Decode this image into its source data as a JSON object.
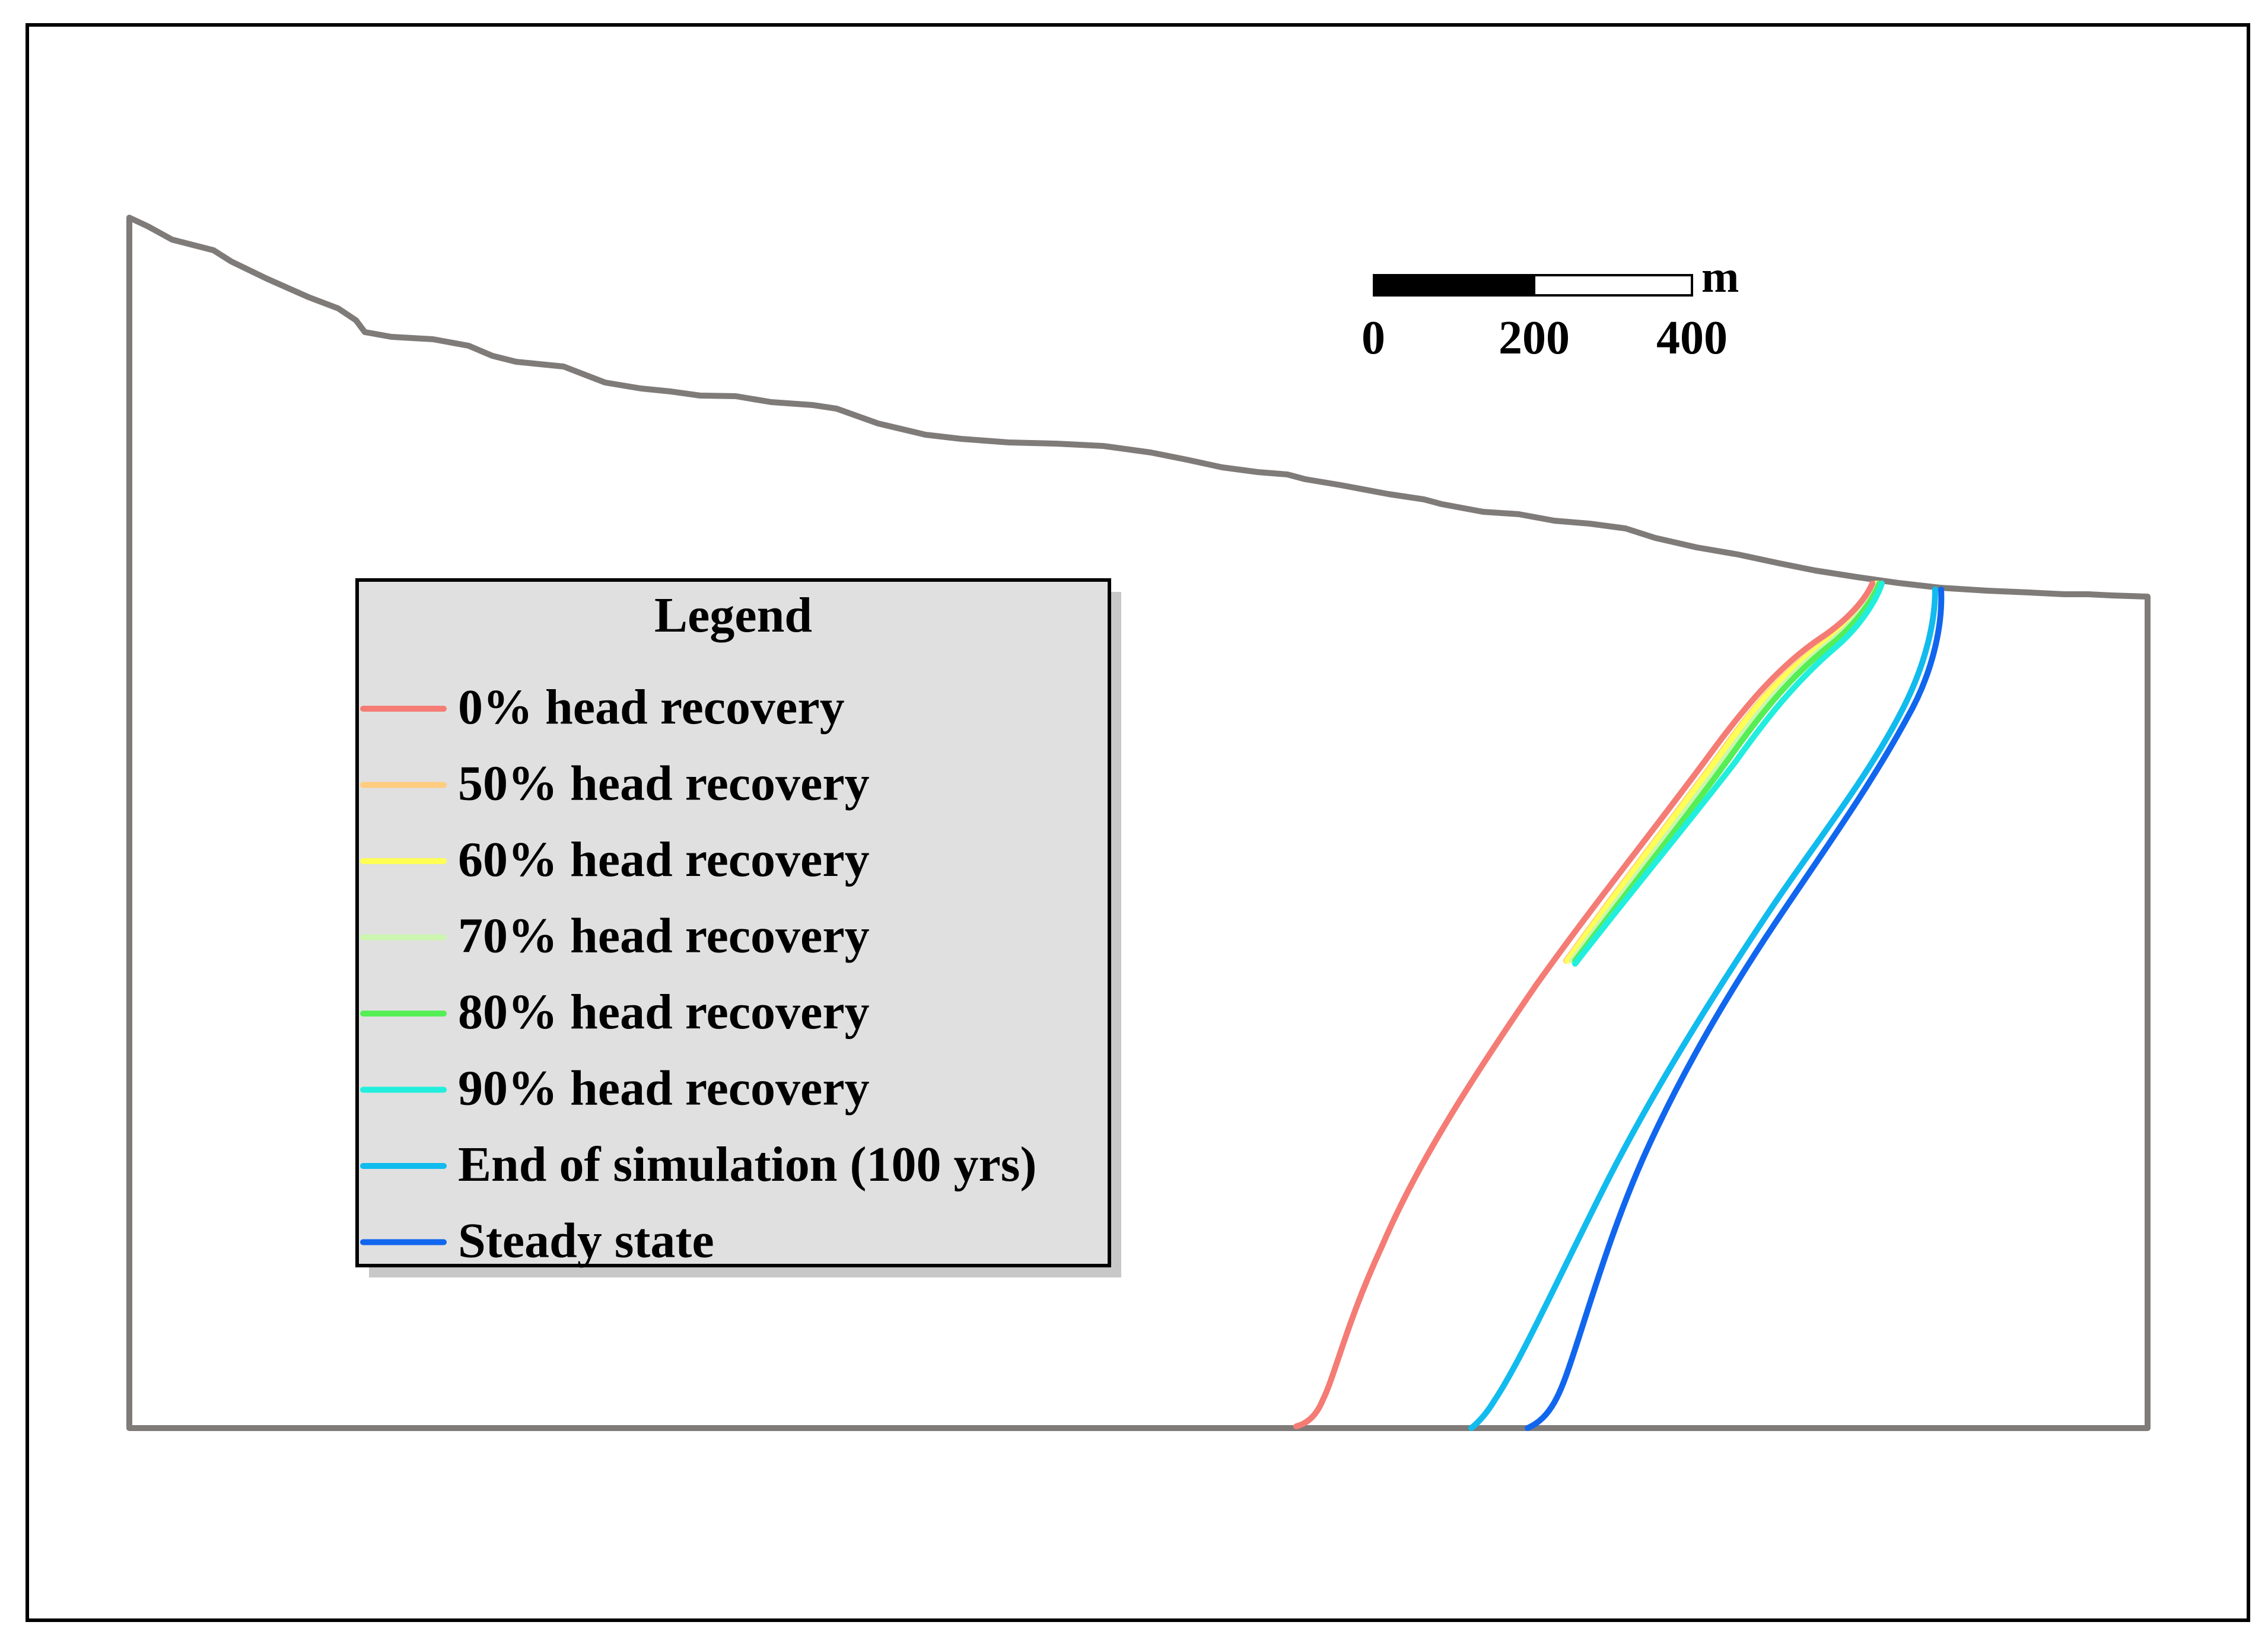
{
  "figure": {
    "type": "cross-section",
    "colors": {
      "frame": "#000000",
      "outline": "#7f7b79",
      "legend_bg": "#e0e0e0",
      "legend_border": "#000000",
      "legend_shadow": "#c8c8c8"
    }
  },
  "scale_bar": {
    "unit": "m",
    "ticks": [
      "0",
      "200",
      "400"
    ]
  },
  "legend": {
    "title": "Legend",
    "items": [
      {
        "label": "0% head recovery",
        "color": "#f47c75"
      },
      {
        "label": "50% head recovery",
        "color": "#ffcc80"
      },
      {
        "label": "60% head recovery",
        "color": "#ffff55"
      },
      {
        "label": "70% head recovery",
        "color": "#ccf5b0"
      },
      {
        "label": "80% head recovery",
        "color": "#55ee55"
      },
      {
        "label": "90% head recovery",
        "color": "#22eedd"
      },
      {
        "label": "End of simulation (100 yrs)",
        "color": "#11bbee"
      },
      {
        "label": "Steady state",
        "color": "#1166ee"
      }
    ]
  }
}
